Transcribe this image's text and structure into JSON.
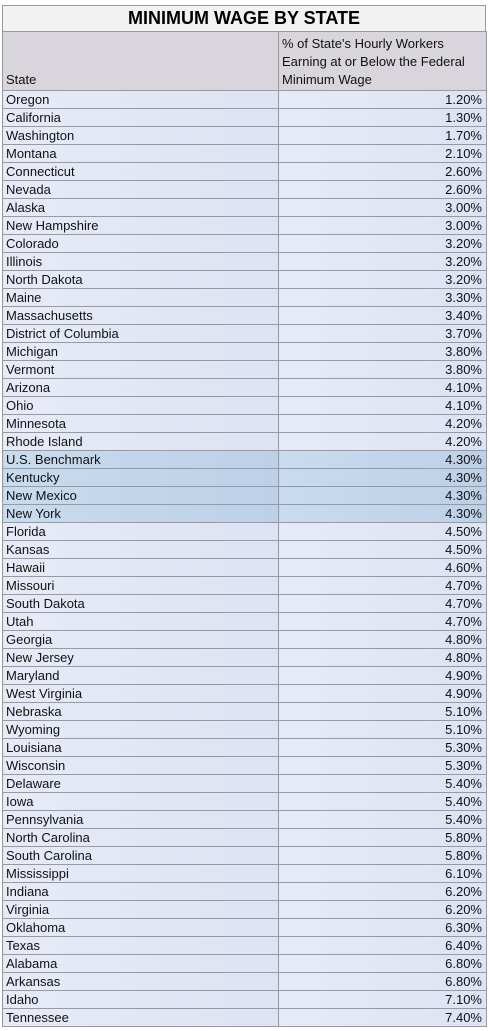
{
  "title": "MINIMUM WAGE BY STATE",
  "header": {
    "col1": "State",
    "col2": "% of State's Hourly Workers Earning at or Below the Federal Minimum Wage"
  },
  "highlight_color": "#c4d6ec",
  "rows": [
    {
      "state": "Oregon",
      "value": "1.20%"
    },
    {
      "state": "California",
      "value": "1.30%"
    },
    {
      "state": "Washington",
      "value": "1.70%"
    },
    {
      "state": "Montana",
      "value": "2.10%"
    },
    {
      "state": "Connecticut",
      "value": "2.60%"
    },
    {
      "state": "Nevada",
      "value": "2.60%"
    },
    {
      "state": "Alaska",
      "value": "3.00%"
    },
    {
      "state": "New Hampshire",
      "value": "3.00%"
    },
    {
      "state": "Colorado",
      "value": "3.20%"
    },
    {
      "state": "Illinois",
      "value": "3.20%"
    },
    {
      "state": "North Dakota",
      "value": "3.20%"
    },
    {
      "state": "Maine",
      "value": "3.30%"
    },
    {
      "state": "Massachusetts",
      "value": "3.40%"
    },
    {
      "state": "District of Columbia",
      "value": "3.70%"
    },
    {
      "state": "Michigan",
      "value": "3.80%"
    },
    {
      "state": "Vermont",
      "value": "3.80%"
    },
    {
      "state": "Arizona",
      "value": "4.10%"
    },
    {
      "state": "Ohio",
      "value": "4.10%"
    },
    {
      "state": "Minnesota",
      "value": "4.20%"
    },
    {
      "state": "Rhode Island",
      "value": "4.20%"
    },
    {
      "state": "U.S. Benchmark",
      "value": "4.30%",
      "highlight": true
    },
    {
      "state": "Kentucky",
      "value": "4.30%",
      "highlight": true
    },
    {
      "state": "New Mexico",
      "value": "4.30%",
      "highlight": true
    },
    {
      "state": "New York",
      "value": "4.30%",
      "highlight": true
    },
    {
      "state": "Florida",
      "value": "4.50%"
    },
    {
      "state": "Kansas",
      "value": "4.50%"
    },
    {
      "state": "Hawaii",
      "value": "4.60%"
    },
    {
      "state": "Missouri",
      "value": "4.70%"
    },
    {
      "state": "South Dakota",
      "value": "4.70%"
    },
    {
      "state": "Utah",
      "value": "4.70%"
    },
    {
      "state": "Georgia",
      "value": "4.80%"
    },
    {
      "state": "New Jersey",
      "value": "4.80%"
    },
    {
      "state": "Maryland",
      "value": "4.90%"
    },
    {
      "state": "West Virginia",
      "value": "4.90%"
    },
    {
      "state": "Nebraska",
      "value": "5.10%"
    },
    {
      "state": "Wyoming",
      "value": "5.10%"
    },
    {
      "state": "Louisiana",
      "value": "5.30%"
    },
    {
      "state": "Wisconsin",
      "value": "5.30%"
    },
    {
      "state": "Delaware",
      "value": "5.40%"
    },
    {
      "state": "Iowa",
      "value": "5.40%"
    },
    {
      "state": "Pennsylvania",
      "value": "5.40%"
    },
    {
      "state": "North Carolina",
      "value": "5.80%"
    },
    {
      "state": "South Carolina",
      "value": "5.80%"
    },
    {
      "state": "Mississippi",
      "value": "6.10%"
    },
    {
      "state": "Indiana",
      "value": "6.20%"
    },
    {
      "state": "Virginia",
      "value": "6.20%"
    },
    {
      "state": "Oklahoma",
      "value": "6.30%"
    },
    {
      "state": "Texas",
      "value": "6.40%"
    },
    {
      "state": "Alabama",
      "value": "6.80%"
    },
    {
      "state": "Arkansas",
      "value": "6.80%"
    },
    {
      "state": "Idaho",
      "value": "7.10%"
    },
    {
      "state": "Tennessee",
      "value": "7.40%"
    }
  ]
}
